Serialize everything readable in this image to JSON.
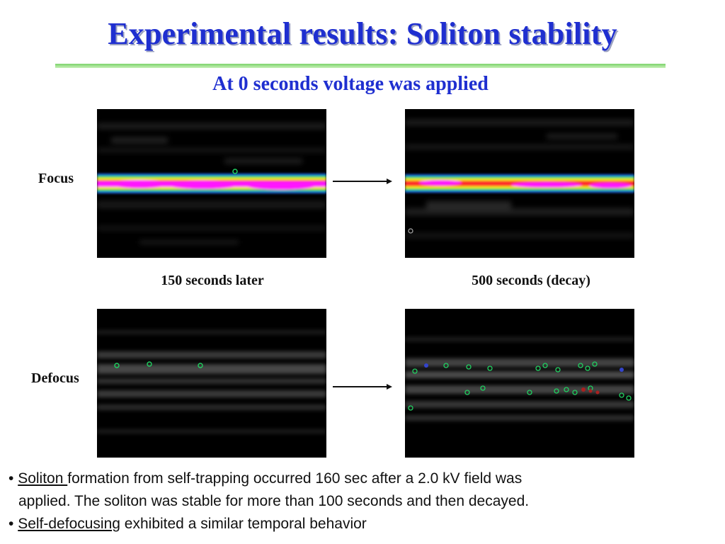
{
  "slide": {
    "title": "Experimental results: Soliton stability",
    "subtitle": "At 0 seconds voltage was applied"
  },
  "rows": {
    "focus_label": "Focus",
    "defocus_label": "Defocus"
  },
  "captions": {
    "left": "150 seconds later",
    "right": "500 seconds (decay)"
  },
  "bullets": {
    "b1_marker": "•",
    "b1_link": "Soliton ",
    "b1_text": "formation from self-trapping occurred 160 sec after a 2.0 kV field was",
    "b1_cont": "applied. The soliton was stable for more than 100 seconds and then decayed.",
    "b2_marker": "•",
    "b2_link": "Self-defocusing",
    "b2_text": " exhibited a similar temporal behavior"
  },
  "colors": {
    "title_blue": "#1f2fd0",
    "rule_green": "#7cd36a",
    "beam_magenta": "#ff19ff",
    "beam_yellow": "#f0f000",
    "beam_green": "#20d060",
    "beam_blue": "#1f5fe0"
  }
}
